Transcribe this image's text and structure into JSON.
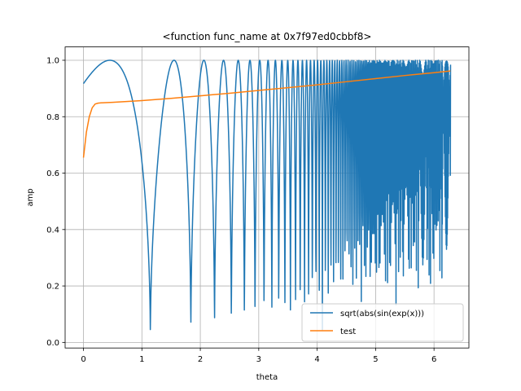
{
  "chart_data": {
    "type": "line",
    "title": "<function func_name at 0x7f97ed0cbbf8>",
    "xlabel": "theta",
    "ylabel": "amp",
    "xlim": [
      -0.314,
      6.597
    ],
    "ylim": [
      -0.0198,
      1.0473
    ],
    "x_ticks": [
      0,
      1,
      2,
      3,
      4,
      5,
      6
    ],
    "y_ticks": [
      0.0,
      0.2,
      0.4,
      0.6,
      0.8,
      1.0
    ],
    "x_tick_labels": [
      "0",
      "1",
      "2",
      "3",
      "4",
      "5",
      "6"
    ],
    "y_tick_labels": [
      "0.0",
      "0.2",
      "0.4",
      "0.6",
      "0.8",
      "1.0"
    ],
    "grid": true,
    "legend_position": "lower-right",
    "x_domain": [
      0,
      6.283
    ],
    "series": [
      {
        "name": "sqrt(abs(sin(exp(x)))",
        "color": "#1f77b4",
        "function": "sqrt(abs(sin(exp(x)))",
        "samples": 2000
      },
      {
        "name": "test",
        "color": "#ff7f0e",
        "x": [
          0.0,
          0.05,
          0.1,
          0.15,
          0.2,
          0.25,
          0.3,
          0.5,
          1.0,
          1.5,
          2.0,
          2.5,
          3.0,
          3.5,
          4.0,
          4.5,
          5.0,
          5.5,
          6.0,
          6.28
        ],
        "y": [
          0.655,
          0.745,
          0.8,
          0.832,
          0.845,
          0.848,
          0.849,
          0.851,
          0.857,
          0.865,
          0.874,
          0.883,
          0.893,
          0.903,
          0.913,
          0.924,
          0.935,
          0.946,
          0.956,
          0.962
        ]
      }
    ]
  }
}
